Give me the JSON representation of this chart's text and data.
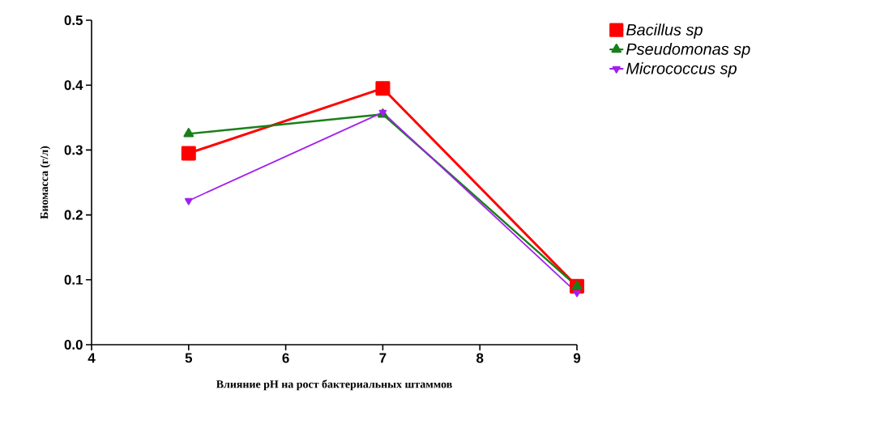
{
  "chart_data": {
    "type": "line",
    "xlabel": "Влияние pH на рост бактериальных штаммов",
    "ylabel": "Биомасса (г/л)",
    "x": [
      5,
      7,
      9
    ],
    "series": [
      {
        "name": "Bacillus sp",
        "color": "#ff0000",
        "values": [
          0.295,
          0.395,
          0.09
        ],
        "marker": "square"
      },
      {
        "name": "Pseudomonas sp",
        "color": "#1a7f1a",
        "values": [
          0.325,
          0.355,
          0.09
        ],
        "marker": "triangle"
      },
      {
        "name": "Micrococcus sp",
        "color": "#a020f0",
        "values": [
          0.222,
          0.358,
          0.08
        ],
        "marker": "triangle-down"
      }
    ],
    "xlim": [
      4,
      9
    ],
    "ylim": [
      0,
      0.5
    ],
    "xticks": [
      4,
      5,
      6,
      7,
      8,
      9
    ],
    "yticks": [
      {
        "value": 0,
        "label": "0.0"
      },
      {
        "value": 0.1,
        "label": "0.1"
      },
      {
        "value": 0.2,
        "label": "0.2"
      },
      {
        "value": 0.3,
        "label": "0.3"
      },
      {
        "value": 0.4,
        "label": "0.4"
      },
      {
        "value": 0.5,
        "label": "0.5"
      }
    ],
    "legend": "top right",
    "grid": false,
    "line_style": "solid"
  }
}
